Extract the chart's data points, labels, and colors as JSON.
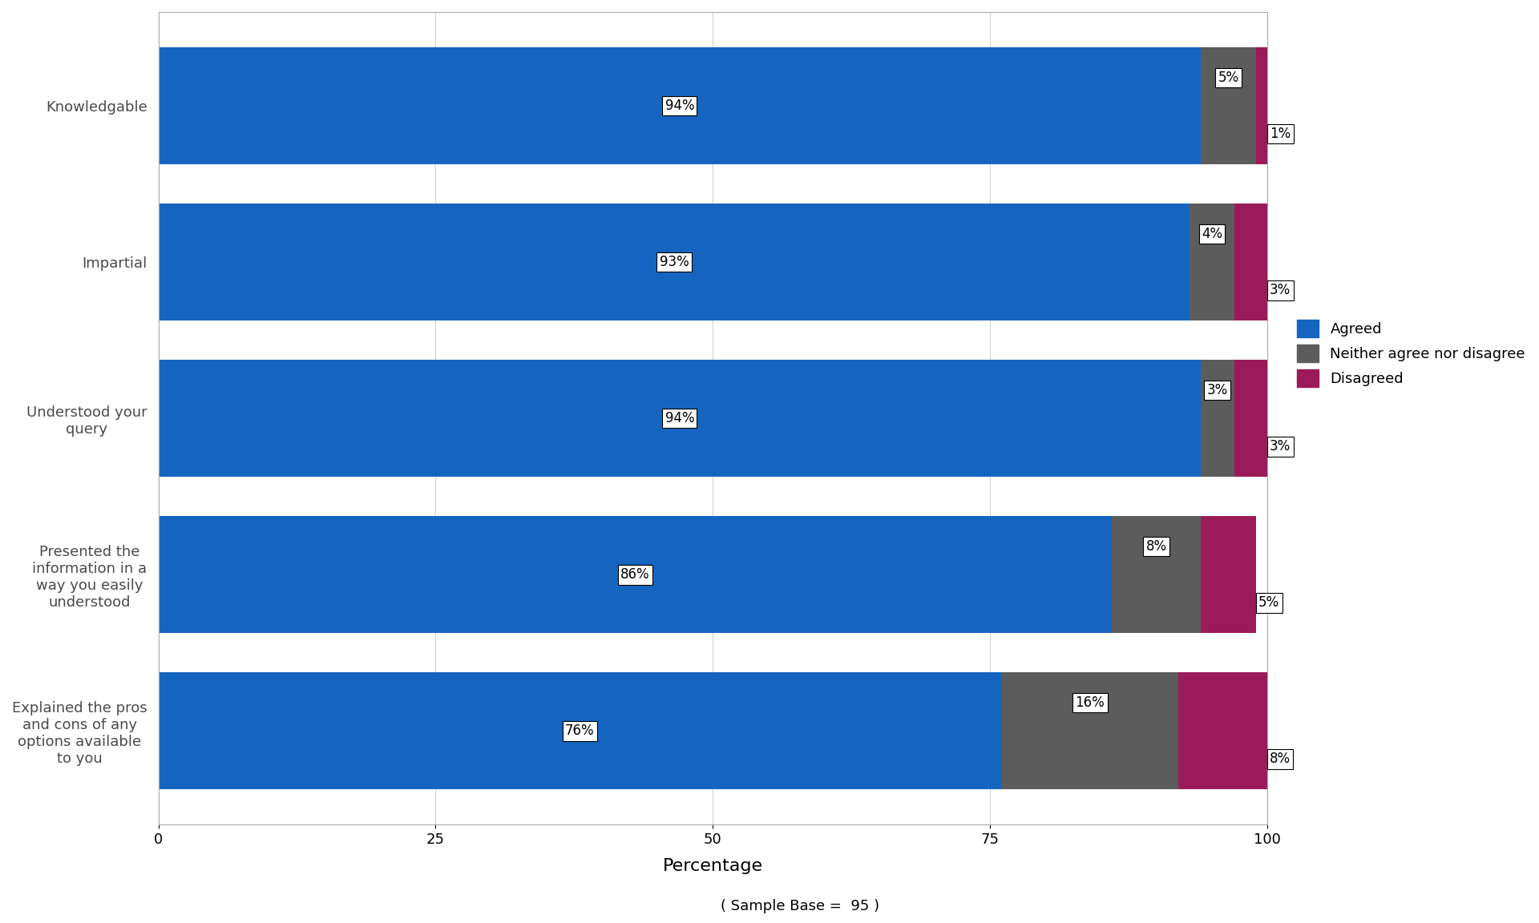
{
  "categories": [
    "Knowledgable",
    "Impartial",
    "Understood your\nquery",
    "Presented the\ninformation in a\nway you easily\nunderstood",
    "Explained the pros\nand cons of any\noptions available\nto you"
  ],
  "agreed": [
    94,
    93,
    94,
    86,
    76
  ],
  "neither": [
    5,
    4,
    3,
    8,
    16
  ],
  "disagreed": [
    1,
    3,
    3,
    5,
    8
  ],
  "agreed_labels": [
    "94%",
    "93%",
    "94%",
    "86%",
    "76%"
  ],
  "neither_labels": [
    "5%",
    "4%",
    "3%",
    "8%",
    "16%"
  ],
  "disagreed_labels": [
    "1%",
    "3%",
    "3%",
    "5%",
    "8%"
  ],
  "agreed_color": "#1565C0",
  "neither_color": "#5C5C5C",
  "disagreed_color": "#9B1B5A",
  "xlabel": "Percentage",
  "sample_base": "( Sample Base =  95 )",
  "legend_agreed": "Agreed",
  "legend_neither": "Neither agree nor disagree",
  "legend_disagreed": "Disagreed",
  "xlim": [
    0,
    100
  ],
  "background_color": "#ffffff",
  "bar_height": 0.75,
  "label_fontsize": 12,
  "tick_fontsize": 13,
  "axis_label_fontsize": 16,
  "legend_fontsize": 13,
  "sample_fontsize": 13,
  "category_fontsize": 13
}
